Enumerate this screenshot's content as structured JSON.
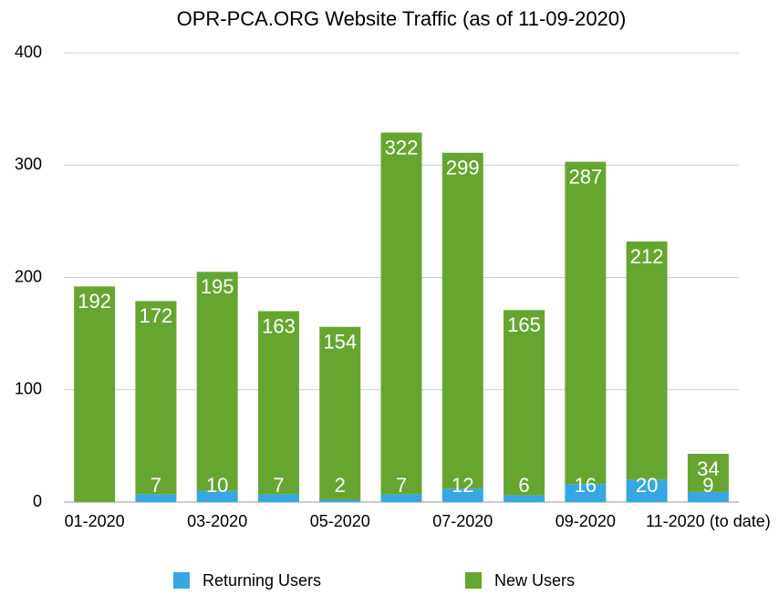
{
  "chart_data": {
    "type": "stacked_bar",
    "title": "OPR-PCA.ORG Website Traffic (as of 11-09-2020)",
    "categories": [
      "01-2020",
      null,
      "03-2020",
      null,
      "05-2020",
      null,
      "07-2020",
      null,
      "09-2020",
      null,
      "11-2020 (to date)"
    ],
    "series": [
      {
        "name": "Returning Users",
        "color": "#36a7e0",
        "values": [
          0,
          7,
          10,
          7,
          2,
          7,
          12,
          6,
          16,
          20,
          9
        ],
        "value_labels": [
          null,
          "7",
          "10",
          "7",
          "2",
          "7",
          "12",
          "6",
          "16",
          "20",
          "9"
        ]
      },
      {
        "name": "New Users",
        "color": "#66a630",
        "values": [
          192,
          172,
          195,
          163,
          154,
          322,
          299,
          165,
          287,
          212,
          34
        ]
      }
    ],
    "ylim": [
      0,
      400
    ],
    "yticks": [
      0,
      100,
      200,
      300,
      400
    ],
    "grid": true
  }
}
